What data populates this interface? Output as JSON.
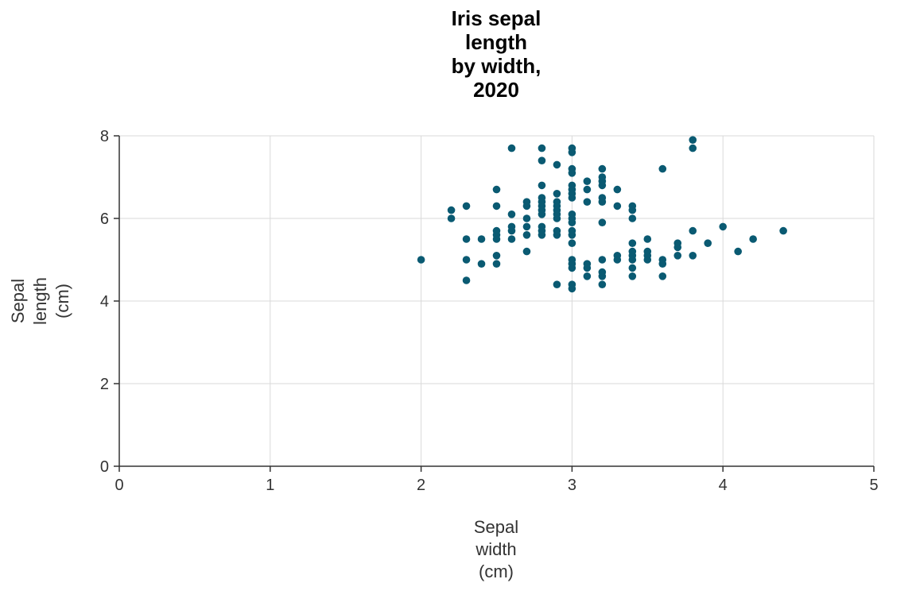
{
  "chart_data": {
    "type": "scatter",
    "title_lines": [
      "Iris sepal",
      "length",
      "by width,",
      "2020"
    ],
    "xlabel_lines": [
      "Sepal",
      "width",
      "(cm)"
    ],
    "ylabel_lines": [
      "Sepal",
      "length",
      "(cm)"
    ],
    "xlim": [
      0,
      5
    ],
    "ylim": [
      0,
      8
    ],
    "xticks": [
      0,
      1,
      2,
      3,
      4,
      5
    ],
    "yticks": [
      0,
      2,
      4,
      6,
      8
    ],
    "grid": true,
    "point_color": "#0a5a72",
    "points": [
      [
        2.0,
        5.0
      ],
      [
        2.2,
        6.2
      ],
      [
        2.2,
        6.0
      ],
      [
        2.3,
        6.3
      ],
      [
        2.3,
        5.5
      ],
      [
        2.3,
        5.0
      ],
      [
        2.3,
        4.5
      ],
      [
        2.4,
        5.5
      ],
      [
        2.4,
        4.9
      ],
      [
        2.5,
        6.7
      ],
      [
        2.5,
        6.3
      ],
      [
        2.5,
        5.7
      ],
      [
        2.5,
        5.6
      ],
      [
        2.5,
        5.5
      ],
      [
        2.5,
        5.1
      ],
      [
        2.5,
        4.9
      ],
      [
        2.6,
        7.7
      ],
      [
        2.6,
        6.1
      ],
      [
        2.6,
        5.8
      ],
      [
        2.6,
        5.7
      ],
      [
        2.6,
        5.5
      ],
      [
        2.7,
        6.4
      ],
      [
        2.7,
        6.3
      ],
      [
        2.7,
        6.0
      ],
      [
        2.7,
        5.8
      ],
      [
        2.7,
        5.6
      ],
      [
        2.7,
        5.2
      ],
      [
        2.8,
        7.7
      ],
      [
        2.8,
        7.4
      ],
      [
        2.8,
        6.8
      ],
      [
        2.8,
        6.5
      ],
      [
        2.8,
        6.4
      ],
      [
        2.8,
        6.3
      ],
      [
        2.8,
        6.2
      ],
      [
        2.8,
        6.1
      ],
      [
        2.8,
        5.8
      ],
      [
        2.8,
        5.7
      ],
      [
        2.8,
        5.6
      ],
      [
        2.9,
        7.3
      ],
      [
        2.9,
        6.6
      ],
      [
        2.9,
        6.4
      ],
      [
        2.9,
        6.3
      ],
      [
        2.9,
        6.2
      ],
      [
        2.9,
        6.1
      ],
      [
        2.9,
        6.0
      ],
      [
        2.9,
        5.7
      ],
      [
        2.9,
        5.6
      ],
      [
        2.9,
        4.4
      ],
      [
        3.0,
        7.7
      ],
      [
        3.0,
        7.6
      ],
      [
        3.0,
        7.2
      ],
      [
        3.0,
        7.1
      ],
      [
        3.0,
        6.8
      ],
      [
        3.0,
        6.7
      ],
      [
        3.0,
        6.6
      ],
      [
        3.0,
        6.5
      ],
      [
        3.0,
        6.1
      ],
      [
        3.0,
        6.0
      ],
      [
        3.0,
        5.9
      ],
      [
        3.0,
        5.7
      ],
      [
        3.0,
        5.6
      ],
      [
        3.0,
        5.4
      ],
      [
        3.0,
        5.0
      ],
      [
        3.0,
        4.9
      ],
      [
        3.0,
        4.8
      ],
      [
        3.0,
        4.4
      ],
      [
        3.0,
        4.3
      ],
      [
        3.1,
        6.9
      ],
      [
        3.1,
        6.7
      ],
      [
        3.1,
        6.4
      ],
      [
        3.1,
        4.9
      ],
      [
        3.1,
        4.8
      ],
      [
        3.1,
        4.6
      ],
      [
        3.2,
        7.2
      ],
      [
        3.2,
        7.0
      ],
      [
        3.2,
        6.9
      ],
      [
        3.2,
        6.8
      ],
      [
        3.2,
        6.5
      ],
      [
        3.2,
        6.4
      ],
      [
        3.2,
        5.9
      ],
      [
        3.2,
        5.0
      ],
      [
        3.2,
        4.7
      ],
      [
        3.2,
        4.6
      ],
      [
        3.2,
        4.4
      ],
      [
        3.3,
        6.7
      ],
      [
        3.3,
        6.3
      ],
      [
        3.3,
        5.1
      ],
      [
        3.3,
        5.0
      ],
      [
        3.4,
        6.3
      ],
      [
        3.4,
        6.2
      ],
      [
        3.4,
        6.0
      ],
      [
        3.4,
        5.4
      ],
      [
        3.4,
        5.2
      ],
      [
        3.4,
        5.1
      ],
      [
        3.4,
        5.0
      ],
      [
        3.4,
        4.8
      ],
      [
        3.4,
        4.6
      ],
      [
        3.5,
        5.5
      ],
      [
        3.5,
        5.2
      ],
      [
        3.5,
        5.1
      ],
      [
        3.5,
        5.0
      ],
      [
        3.6,
        7.2
      ],
      [
        3.6,
        5.0
      ],
      [
        3.6,
        4.9
      ],
      [
        3.6,
        4.6
      ],
      [
        3.7,
        5.4
      ],
      [
        3.7,
        5.3
      ],
      [
        3.7,
        5.1
      ],
      [
        3.8,
        7.9
      ],
      [
        3.8,
        7.7
      ],
      [
        3.8,
        5.7
      ],
      [
        3.8,
        5.1
      ],
      [
        3.9,
        5.4
      ],
      [
        4.0,
        5.8
      ],
      [
        4.1,
        5.2
      ],
      [
        4.2,
        5.5
      ],
      [
        4.4,
        5.7
      ]
    ]
  }
}
